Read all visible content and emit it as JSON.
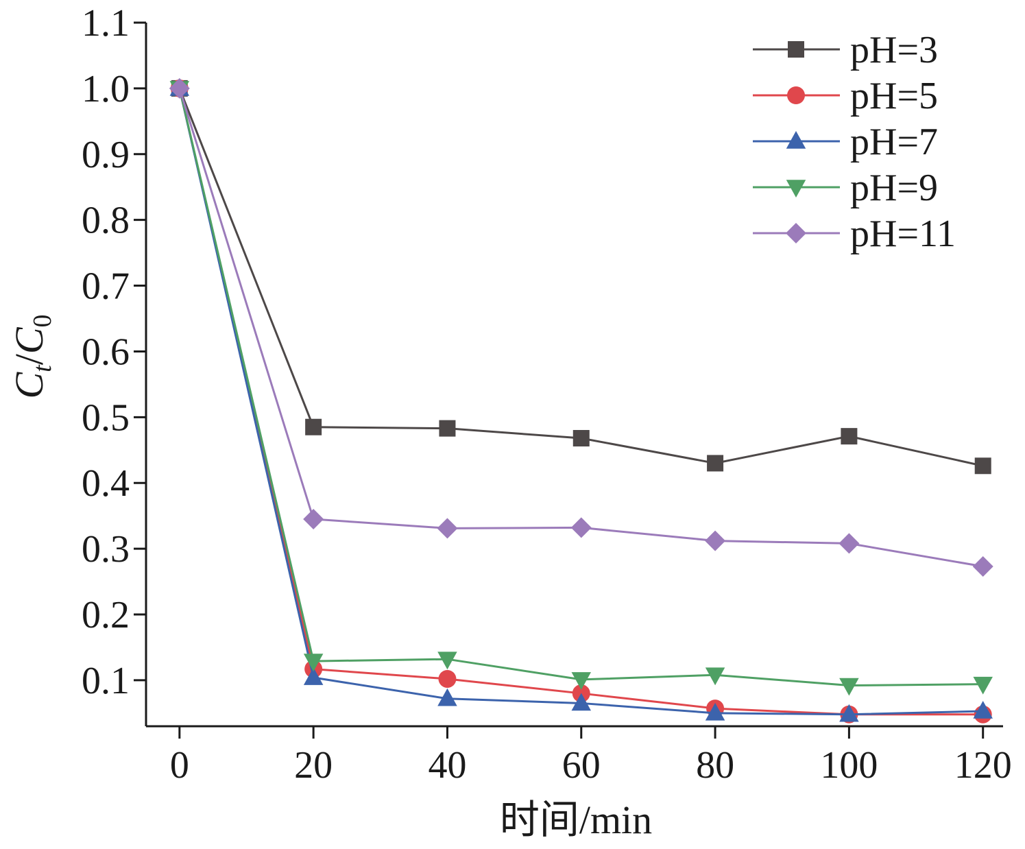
{
  "chart_data": {
    "type": "line",
    "title": "",
    "xlabel": "时间/min",
    "ylabel": {
      "main": "C",
      "sub1": "t",
      "slash": "/",
      "main2": "C",
      "sub2": "0"
    },
    "xlim": [
      -5,
      123
    ],
    "ylim": [
      0.03,
      1.1
    ],
    "x": [
      0,
      20,
      40,
      60,
      80,
      100,
      120
    ],
    "x_ticks": [
      0,
      20,
      40,
      60,
      80,
      100,
      120
    ],
    "x_tick_labels": [
      "0",
      "20",
      "40",
      "60",
      "80",
      "100",
      "120"
    ],
    "y_ticks": [
      0.1,
      0.2,
      0.3,
      0.4,
      0.5,
      0.6,
      0.7,
      0.8,
      0.9,
      1.0,
      1.1
    ],
    "y_tick_labels": [
      "0.1",
      "0.2",
      "0.3",
      "0.4",
      "0.5",
      "0.6",
      "0.7",
      "0.8",
      "0.9",
      "1.0",
      "1.1"
    ],
    "grid": false,
    "legend_position": "top-right",
    "series": [
      {
        "name": "pH=3",
        "marker": "square",
        "color": "#4d4848",
        "values": [
          1.0,
          0.485,
          0.483,
          0.468,
          0.43,
          0.471,
          0.426
        ]
      },
      {
        "name": "pH=5",
        "marker": "circle",
        "color": "#e0474c",
        "values": [
          1.0,
          0.117,
          0.102,
          0.08,
          0.057,
          0.048,
          0.048
        ]
      },
      {
        "name": "pH=7",
        "marker": "triangle-up",
        "color": "#3c63ac",
        "values": [
          1.0,
          0.104,
          0.072,
          0.065,
          0.05,
          0.048,
          0.053
        ]
      },
      {
        "name": "pH=9",
        "marker": "triangle-down",
        "color": "#4fa064",
        "values": [
          1.0,
          0.129,
          0.132,
          0.101,
          0.108,
          0.092,
          0.094
        ]
      },
      {
        "name": "pH=11",
        "marker": "diamond",
        "color": "#9b7bba",
        "values": [
          1.0,
          0.345,
          0.331,
          0.332,
          0.312,
          0.308,
          0.273
        ]
      }
    ]
  }
}
